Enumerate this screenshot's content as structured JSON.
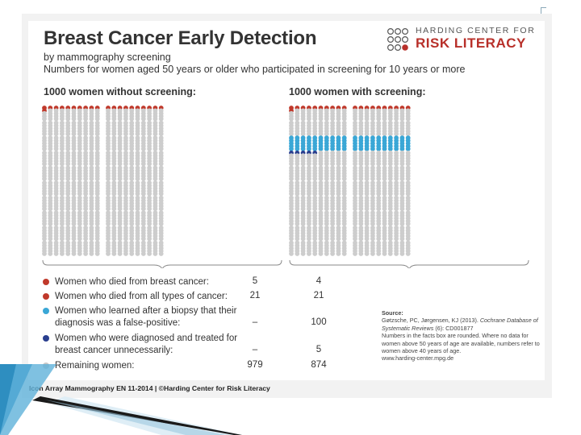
{
  "title": "Breast Cancer Early Detection",
  "subtitle_1": "by mammography screening",
  "subtitle_2": "Numbers for women aged 50 years or older who participated in screening for 10 years or more",
  "logo": {
    "line1": "HARDING CENTER FOR",
    "line2": "RISK LITERACY"
  },
  "panels": [
    {
      "heading": "1000 women without screening:",
      "died_breast": 5,
      "died_other": 16,
      "false_positive": 0,
      "overdiagnosed": 0
    },
    {
      "heading": "1000 women with screening:",
      "died_breast": 4,
      "died_other": 17,
      "false_positive": 100,
      "overdiagnosed": 5
    }
  ],
  "legend": [
    {
      "label_1": "Women who died from breast cancer:",
      "label_2": "",
      "without": "5",
      "with": "4",
      "color": "#c0392b",
      "icon": "ribbon-dot-icon"
    },
    {
      "label_1": "Women who died from all types of cancer:",
      "label_2": "",
      "without": "21",
      "with": "21",
      "color": "#c0392b",
      "icon": "red-dot-icon"
    },
    {
      "label_1": "Women who learned after a biopsy that their",
      "label_2": "diagnosis was a false-positive:",
      "without": "–",
      "with": "100",
      "color": "#3aa7d6",
      "icon": "blue-dot-icon"
    },
    {
      "label_1": "Women who were diagnosed and treated for",
      "label_2": "breast cancer unnecessarily:",
      "without": "–",
      "with": "5",
      "color": "#2a3f8f",
      "icon": "navy-dot-icon"
    },
    {
      "label_1": "Remaining women:",
      "label_2": "",
      "without": "979",
      "with": "874",
      "color": "#c8c8c8",
      "icon": "grey-dot-icon"
    }
  ],
  "source": {
    "heading": "Source:",
    "authors": "Gøtzsche, PC, Jørgensen, KJ (2013).",
    "journal": "Cochrane Database of Systematic Reviews",
    "ref": "(6): CD001877",
    "note": "Numbers in the facts box are rounded. Where no data for women above 50 years of age are available, numbers refer to women above 40 years of age.",
    "url": "www.harding-center.mpg.de"
  },
  "footer": "Icon Array Mammography EN 11-2014 | ©Harding Center for Risk Literacy",
  "colors": {
    "red": "#c0392b",
    "light_blue": "#3aa7d6",
    "navy": "#2a3f8f",
    "grey": "#cdcdcd"
  }
}
